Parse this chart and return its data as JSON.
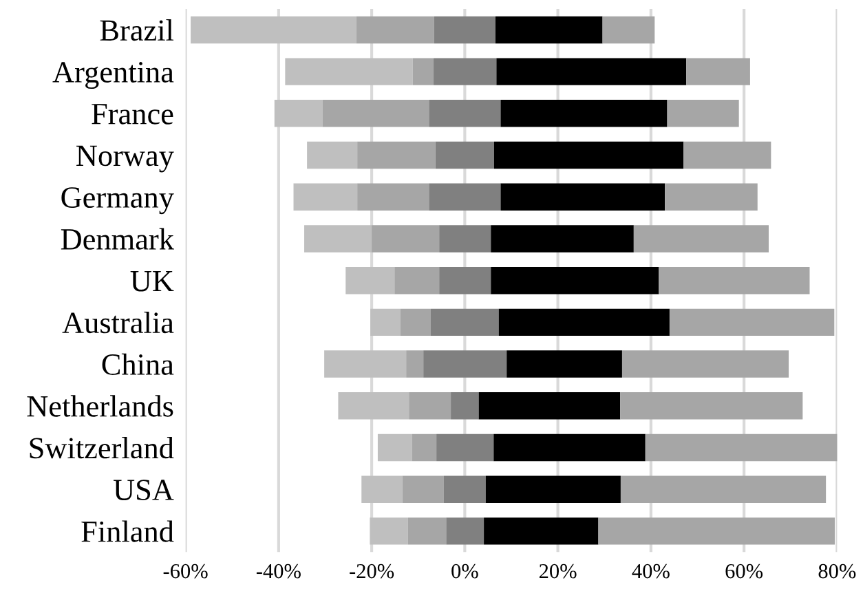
{
  "chart_data": {
    "type": "bar",
    "orientation": "horizontal",
    "categories": [
      "Brazil",
      "Argentina",
      "France",
      "Norway",
      "Germany",
      "Denmark",
      "UK",
      "Australia",
      "China",
      "Netherlands",
      "Switzerland",
      "USA",
      "Finland"
    ],
    "series": [
      {
        "color": "#bfbfbf",
        "base": [
          -58.9,
          -38.6,
          -40.9,
          -33.9,
          -36.8,
          -34.5,
          -25.6,
          -20.3,
          -30.2,
          -27.2,
          -18.7,
          -22.2,
          -20.4
        ],
        "values": [
          35.6,
          27.4,
          10.3,
          10.8,
          13.7,
          14.5,
          10.5,
          6.5,
          17.6,
          15.2,
          7.4,
          8.8,
          8.2
        ]
      },
      {
        "color": "#a6a6a6",
        "base": [
          -23.3,
          -11.2,
          -30.6,
          -23.1,
          -23.1,
          -20.0,
          -15.1,
          -13.8,
          -12.6,
          -12.0,
          -11.3,
          -13.4,
          -12.2
        ],
        "values": [
          16.7,
          4.5,
          22.9,
          16.8,
          15.4,
          14.5,
          9.6,
          6.5,
          3.7,
          9.0,
          5.2,
          8.9,
          8.2
        ]
      },
      {
        "color": "#808080",
        "base": [
          -6.6,
          -6.7,
          -7.7,
          -6.3,
          -7.7,
          -5.5,
          -5.5,
          -7.3,
          -8.9,
          -3.0,
          -6.1,
          -4.5,
          -4.0
        ],
        "values": [
          13.2,
          13.5,
          15.4,
          12.6,
          15.4,
          11.1,
          11.1,
          14.6,
          17.9,
          6.0,
          12.3,
          9.0,
          8.1
        ]
      },
      {
        "color": "#000000",
        "base": [
          6.6,
          6.8,
          7.7,
          6.3,
          7.7,
          5.6,
          5.6,
          7.3,
          9.0,
          3.0,
          6.2,
          4.5,
          4.1
        ],
        "values": [
          23.0,
          40.8,
          35.8,
          40.7,
          35.3,
          30.7,
          36.1,
          36.7,
          24.8,
          30.4,
          32.6,
          29.0,
          24.6
        ]
      },
      {
        "color": "#a6a6a6",
        "base": [
          29.6,
          47.6,
          43.5,
          47.0,
          43.0,
          36.3,
          41.7,
          44.0,
          33.8,
          33.4,
          38.8,
          33.5,
          28.7
        ],
        "values": [
          11.2,
          13.7,
          15.4,
          18.8,
          19.9,
          29.0,
          32.4,
          35.4,
          35.8,
          39.2,
          42.3,
          44.1,
          50.8
        ]
      }
    ],
    "xlim": [
      -60,
      80
    ],
    "xticks": [
      {
        "value": -60,
        "label": "-60%"
      },
      {
        "value": -40,
        "label": "-40%"
      },
      {
        "value": -20,
        "label": "-20%"
      },
      {
        "value": 0,
        "label": "0%"
      },
      {
        "value": 20,
        "label": "20%"
      },
      {
        "value": 40,
        "label": "40%"
      },
      {
        "value": 60,
        "label": "60%"
      },
      {
        "value": 80,
        "label": "80%"
      }
    ],
    "grid": "x"
  }
}
